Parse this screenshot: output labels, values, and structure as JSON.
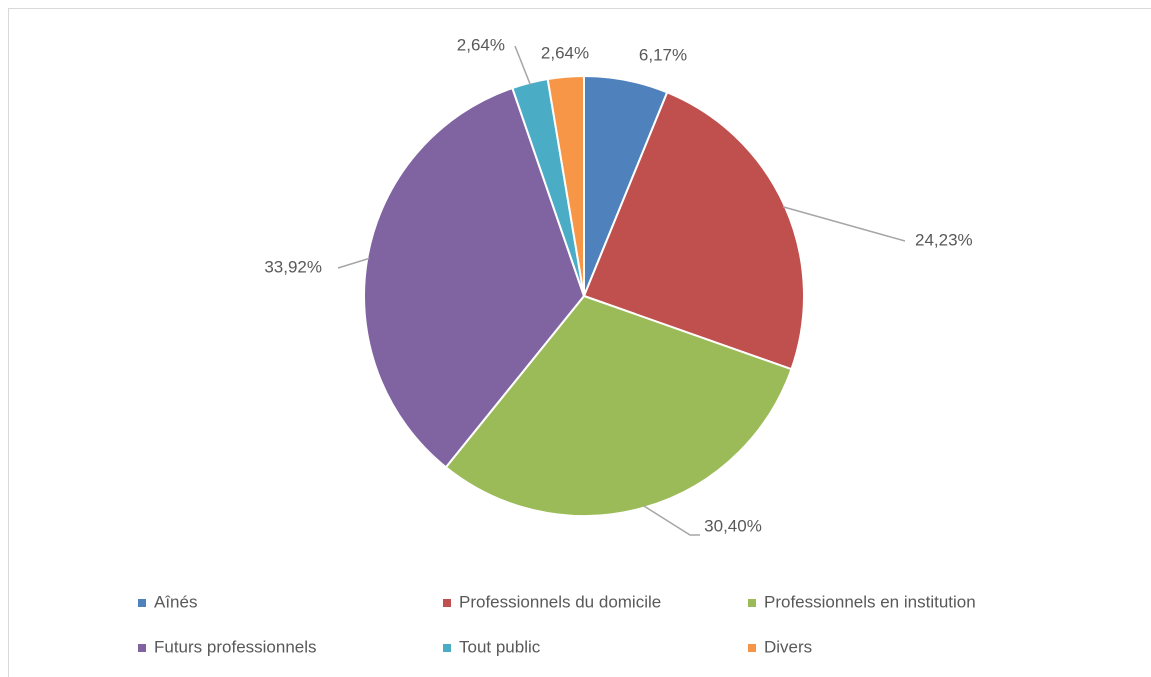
{
  "chart_data": {
    "type": "pie",
    "categories": [
      "Aînés",
      "Professionnels du domicile",
      "Professionnels en institution",
      "Futurs professionnels",
      "Tout public",
      "Divers"
    ],
    "values": [
      6.17,
      24.23,
      30.4,
      33.92,
      2.64,
      2.64
    ],
    "value_labels": [
      "6,17%",
      "24,23%",
      "30,40%",
      "33,92%",
      "2,64%",
      "2,64%"
    ],
    "colors": [
      "#4f81bd",
      "#c0504d",
      "#9bbb59",
      "#8064a2",
      "#4bacc6",
      "#f79646"
    ],
    "legend": "bottom"
  }
}
